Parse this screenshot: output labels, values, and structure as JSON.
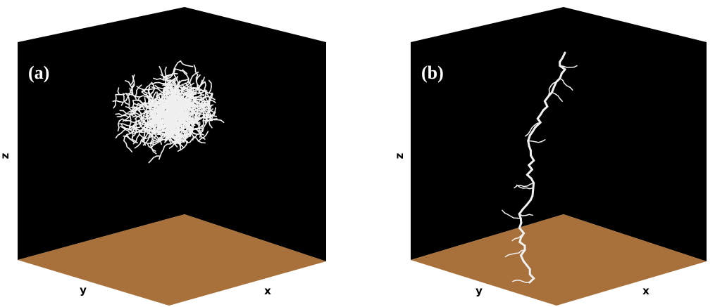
{
  "panels": [
    {
      "label": "(a)",
      "axes": {
        "z": "z",
        "y": "y",
        "x": "x"
      }
    },
    {
      "label": "(b)",
      "axes": {
        "z": "z",
        "y": "y",
        "x": "x"
      }
    }
  ]
}
